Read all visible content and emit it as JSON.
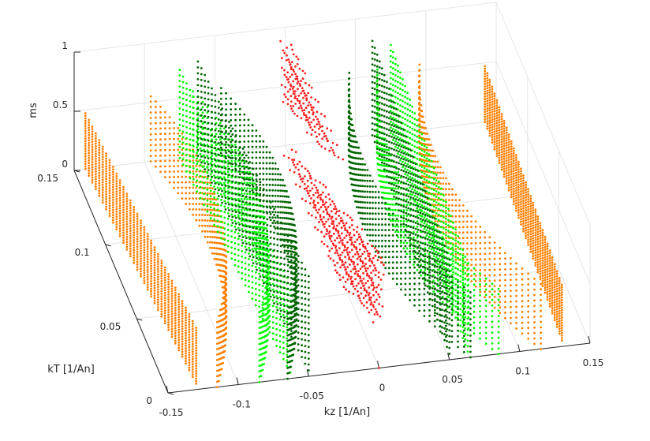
{
  "chart_data": {
    "type": "scatter",
    "title": "",
    "xlabel": "kz [1/An]",
    "ylabel": "kT [1/An]",
    "zlabel": "ms",
    "xlim": [
      -0.15,
      0.15
    ],
    "ylim": [
      0,
      0.15
    ],
    "zlim": [
      0,
      1
    ],
    "x_ticks": [
      "-0.15",
      "-0.1",
      "-0.05",
      "0",
      "0.05",
      "0.1",
      "0.15"
    ],
    "y_ticks": [
      "0",
      "0.05",
      "0.1",
      "0.15"
    ],
    "z_ticks": [
      "0",
      "0.5",
      "1"
    ],
    "grid": true,
    "series": [
      {
        "color": "#ff8000",
        "kz_sheets": [
          -0.13,
          0.13
        ],
        "kz_branches": [
          -0.08,
          0.08
        ]
      },
      {
        "color": "#00ff00",
        "kz_sheets": [
          -0.063,
          0.063
        ],
        "kz_branches": [
          -0.05,
          0.05
        ]
      },
      {
        "color": "#006400",
        "kz_sheets": [
          -0.05,
          0.05
        ],
        "kz_branches": [
          -0.03,
          0.03
        ]
      },
      {
        "color": "#ff2020",
        "kz_sheets": [
          0
        ]
      }
    ]
  }
}
